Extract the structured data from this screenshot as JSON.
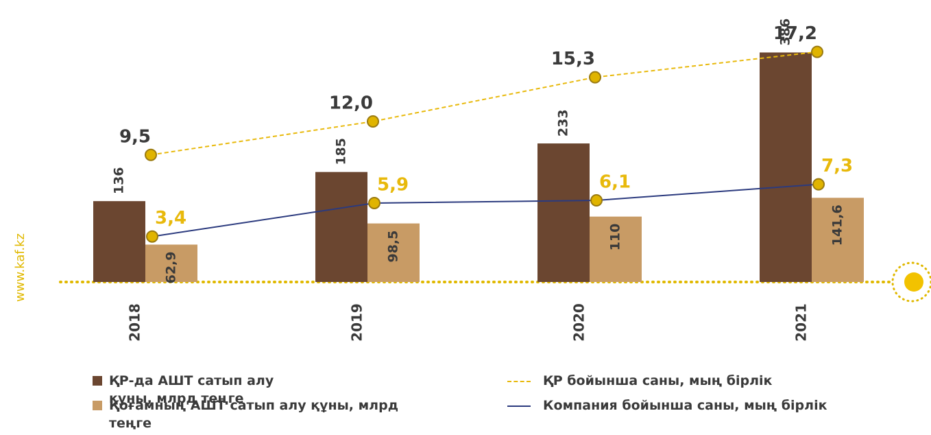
{
  "chart_data": {
    "type": "bar",
    "side_text": "www.kaf.kz",
    "categories": [
      "2018",
      "2019",
      "2020",
      "2021"
    ],
    "ylim": [
      0,
      450
    ],
    "y2lim": [
      0,
      20
    ],
    "series": [
      {
        "name": "ҚР-да АШТ сатып алу құны, млрд теңге",
        "type": "bar",
        "color": "#6b4630",
        "values": [
          136,
          185,
          233,
          386
        ]
      },
      {
        "name": "Қоғамның АШТ сатып алу құны, млрд теңге",
        "type": "bar",
        "color": "#c89b65",
        "values": [
          62.9,
          98.5,
          110,
          141.6
        ],
        "value_labels": [
          "62,9",
          "98,5",
          "110",
          "141,6"
        ]
      },
      {
        "name": "ҚР  бойынша саны, мың бірлік",
        "type": "line",
        "axis": "y2",
        "dashed": true,
        "color": "#e8b90c",
        "values": [
          9.5,
          12.0,
          15.3,
          17.2
        ],
        "value_labels": [
          "9,5",
          "12,0",
          "15,3",
          "17,2"
        ]
      },
      {
        "name": "Компания бойынша саны, мың бірлік",
        "type": "line",
        "axis": "y2",
        "dashed": false,
        "color": "#2b3a7e",
        "values": [
          3.4,
          5.9,
          6.1,
          7.3
        ],
        "value_labels": [
          "3,4",
          "5,9",
          "6,1",
          "7,3"
        ]
      }
    ]
  }
}
